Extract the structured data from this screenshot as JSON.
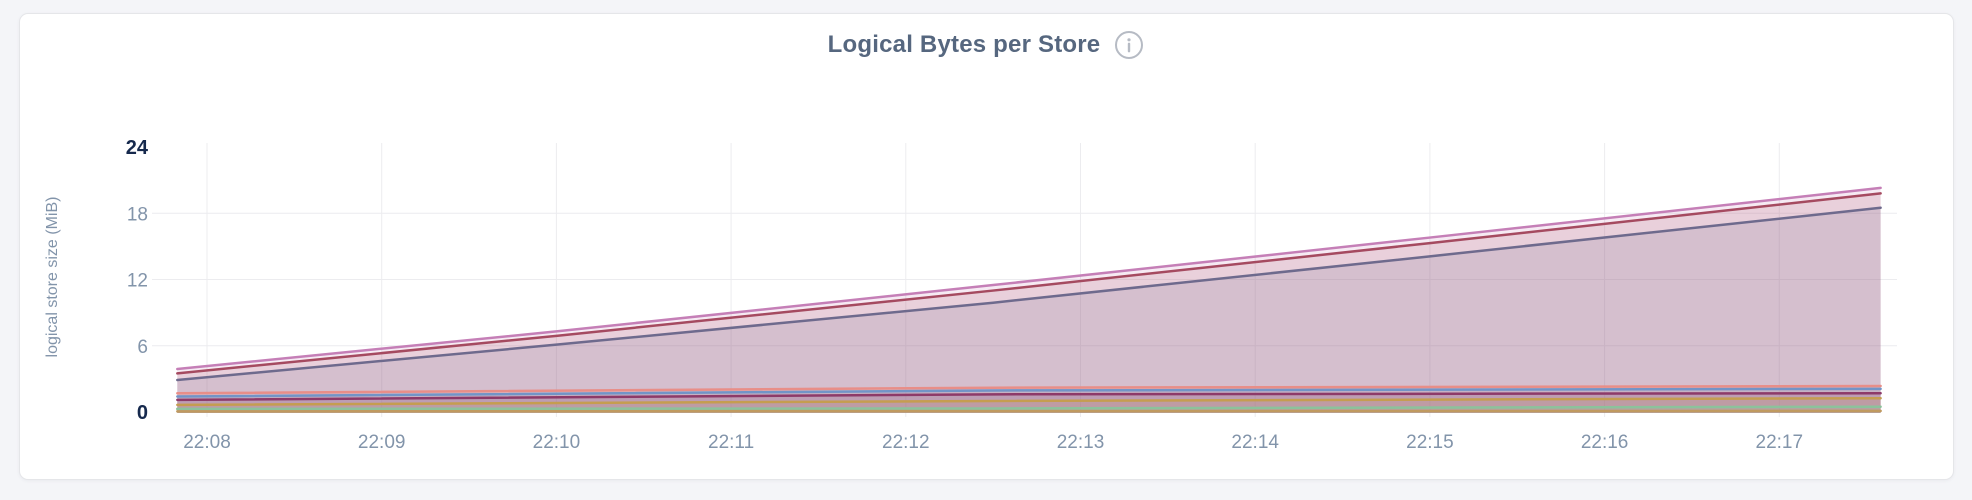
{
  "page": {
    "background_color": "#f4f5f8"
  },
  "card": {
    "background_color": "#ffffff",
    "border_color": "#e5e6e9"
  },
  "header": {
    "title": "Logical Bytes per Store",
    "title_color": "#56677f",
    "info_icon": "info-icon",
    "info_icon_color": "#b6bbc4"
  },
  "chart_data": {
    "type": "area",
    "title": "Logical Bytes per Store",
    "xlabel": "",
    "ylabel": "logical store size (MiB)",
    "unit": "MiB",
    "ylim": [
      0,
      24
    ],
    "grid": true,
    "legend": "none",
    "gridline_color": "#ececef",
    "tick_color": "#8294aa",
    "tick_bold_color": "#16294d",
    "x_ticks": [
      {
        "label": "22:08",
        "t": 8
      },
      {
        "label": "22:09",
        "t": 9
      },
      {
        "label": "22:10",
        "t": 10
      },
      {
        "label": "22:11",
        "t": 11
      },
      {
        "label": "22:12",
        "t": 12
      },
      {
        "label": "22:13",
        "t": 13
      },
      {
        "label": "22:14",
        "t": 14
      },
      {
        "label": "22:15",
        "t": 15
      },
      {
        "label": "22:16",
        "t": 16
      },
      {
        "label": "22:17",
        "t": 17
      }
    ],
    "x_range_minutes_after_2200": [
      7.83,
      17.58
    ],
    "y_ticks": [
      {
        "label": "0",
        "value": 0,
        "bold": true,
        "grid": false
      },
      {
        "label": "6",
        "value": 6,
        "bold": false,
        "grid": true
      },
      {
        "label": "12",
        "value": 12,
        "bold": false,
        "grid": true
      },
      {
        "label": "18",
        "value": 18,
        "bold": false,
        "grid": true
      },
      {
        "label": "24",
        "value": 24,
        "bold": true,
        "grid": false
      }
    ],
    "fill_opacity": 0.16,
    "series": [
      {
        "id": "pink",
        "color": "#c57fb7",
        "points": [
          [
            7.83,
            3.9
          ],
          [
            10.0,
            7.3
          ],
          [
            12.5,
            11.5
          ],
          [
            15.0,
            15.8
          ],
          [
            17.58,
            20.3
          ]
        ]
      },
      {
        "id": "dark-red",
        "color": "#a54a60",
        "points": [
          [
            7.83,
            3.5
          ],
          [
            10.0,
            6.9
          ],
          [
            12.5,
            11.0
          ],
          [
            15.0,
            15.3
          ],
          [
            17.58,
            19.8
          ]
        ]
      },
      {
        "id": "slate",
        "color": "#6e6a8d",
        "points": [
          [
            7.83,
            2.9
          ],
          [
            10.0,
            6.1
          ],
          [
            12.5,
            9.9
          ],
          [
            15.0,
            14.1
          ],
          [
            17.58,
            18.5
          ]
        ]
      },
      {
        "id": "salmon",
        "color": "#e88e88",
        "points": [
          [
            7.83,
            1.7
          ],
          [
            12.5,
            2.2
          ],
          [
            17.58,
            2.35
          ]
        ]
      },
      {
        "id": "blue",
        "color": "#7294c7",
        "points": [
          [
            7.83,
            1.4
          ],
          [
            12.5,
            1.95
          ],
          [
            17.58,
            2.1
          ]
        ]
      },
      {
        "id": "plum",
        "color": "#8d3a69",
        "points": [
          [
            7.83,
            1.1
          ],
          [
            12.5,
            1.6
          ],
          [
            17.58,
            1.7
          ]
        ]
      },
      {
        "id": "gold",
        "color": "#c59d50",
        "points": [
          [
            7.83,
            0.65
          ],
          [
            12.5,
            1.0
          ],
          [
            17.58,
            1.25
          ]
        ]
      },
      {
        "id": "green",
        "color": "#8cc29b",
        "points": [
          [
            7.83,
            0.28
          ],
          [
            12.5,
            0.32
          ],
          [
            17.58,
            0.48
          ]
        ]
      },
      {
        "id": "tan",
        "color": "#c09a60",
        "points": [
          [
            7.83,
            0.06
          ],
          [
            17.58,
            0.1
          ]
        ]
      }
    ]
  }
}
